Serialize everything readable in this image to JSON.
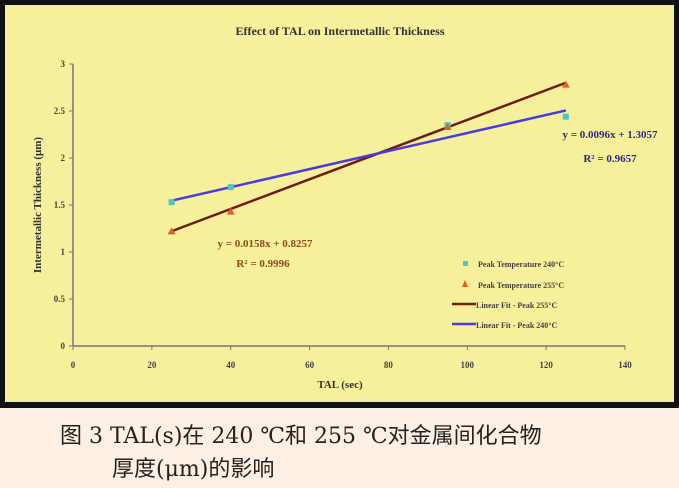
{
  "chart_data": {
    "type": "scatter",
    "title": "Effect of TAL on Intermetallic Thickness",
    "xlabel": "TAL (sec)",
    "ylabel": "Intermetallic Thickness (μm)",
    "xlim": [
      0,
      140
    ],
    "ylim": [
      0,
      3
    ],
    "xticks": [
      "0",
      "20",
      "40",
      "60",
      "80",
      "100",
      "120",
      "140"
    ],
    "yticks": [
      "0",
      "0.5",
      "1",
      "1.5",
      "2",
      "2.5",
      "3"
    ],
    "grid": false,
    "legend_position": "bottom-right",
    "series": [
      {
        "name": "Peak Temperature 240°C",
        "marker": "square",
        "color": "#4fc4c8",
        "x": [
          25,
          40,
          95,
          125
        ],
        "y": [
          1.53,
          1.69,
          2.35,
          2.44
        ]
      },
      {
        "name": "Peak Temperature 255°C",
        "marker": "triangle",
        "color": "#e0602a",
        "x": [
          25,
          40,
          95,
          125
        ],
        "y": [
          1.22,
          1.43,
          2.33,
          2.78
        ]
      }
    ],
    "fits": [
      {
        "name": "Linear Fit - Peak 255°C",
        "color": "#6b1e10",
        "slope": 0.0158,
        "intercept": 0.8257,
        "x_range": [
          25,
          125
        ],
        "equation": "y = 0.0158x + 0.8257",
        "r2": "R² = 0.9996",
        "label_color": "#8a4a1a"
      },
      {
        "name": "Linear Fit - Peak 240°C",
        "color": "#4a3ae0",
        "slope": 0.0096,
        "intercept": 1.3057,
        "x_range": [
          25,
          125
        ],
        "equation": "y = 0.0096x + 1.3057",
        "r2": "R² = 0.9657",
        "label_color": "#2a2a80"
      }
    ]
  },
  "caption": {
    "line1": "图 3 TAL(s)在 240 ℃和 255 ℃对金属间化合物",
    "line2": "厚度(μm)的影响"
  }
}
